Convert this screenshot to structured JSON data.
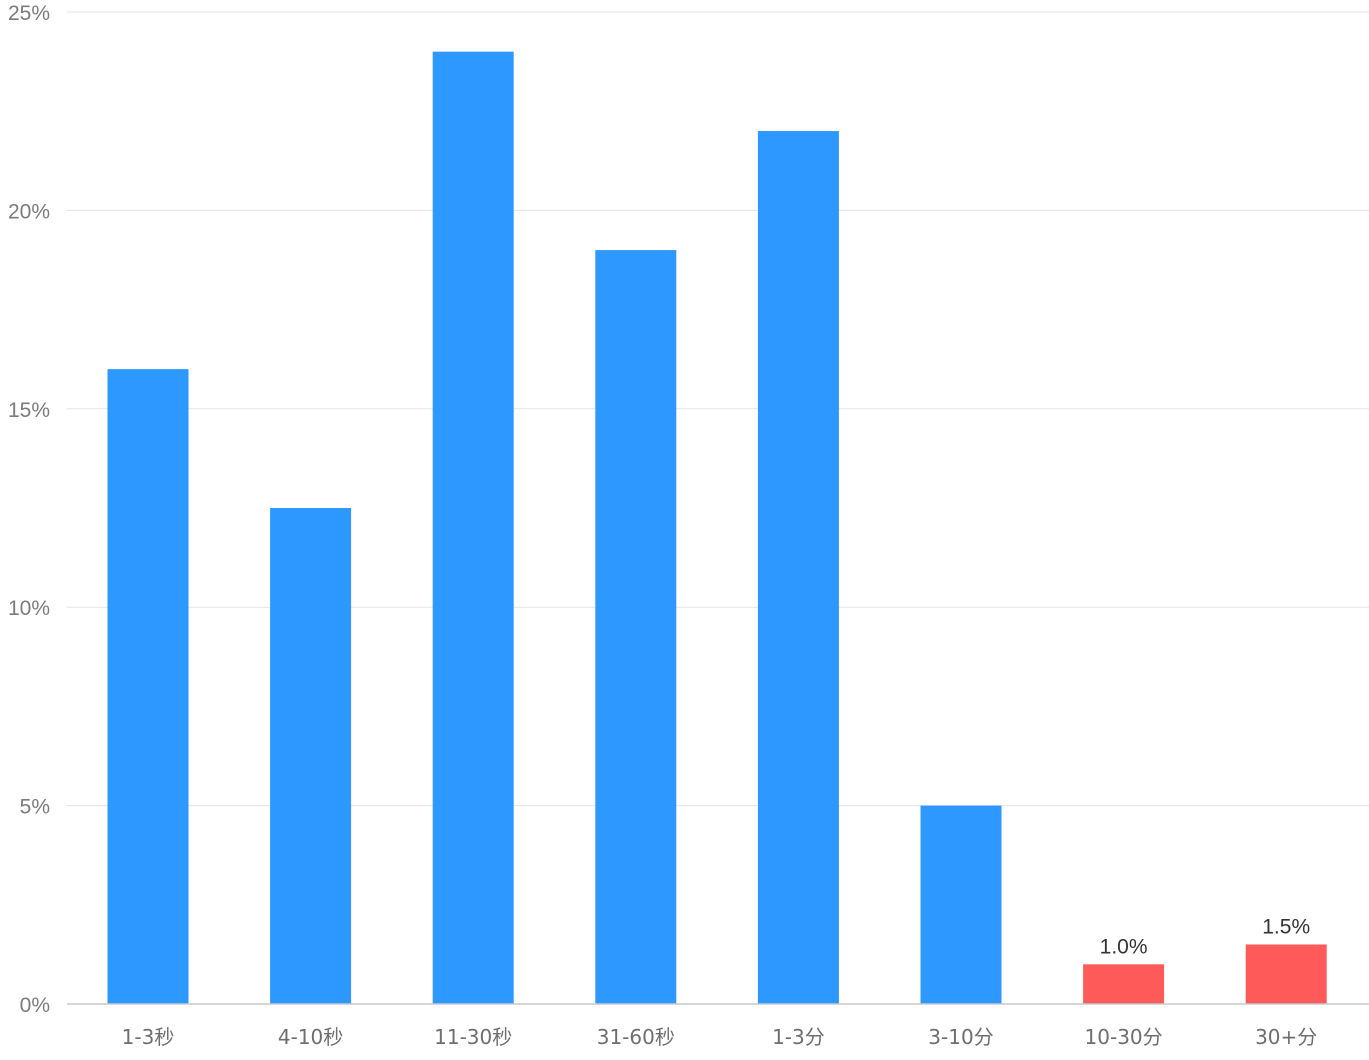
{
  "chart_data": {
    "type": "bar",
    "categories": [
      "1-3秒",
      "4-10秒",
      "11-30秒",
      "31-60秒",
      "1-3分",
      "3-10分",
      "10-30分",
      "30+分"
    ],
    "values": [
      16,
      12.5,
      24,
      19,
      22,
      5,
      1.0,
      1.5
    ],
    "unit": "%",
    "ylim": [
      0,
      25
    ],
    "yticks": [
      "0%",
      "5%",
      "10%",
      "15%",
      "20%",
      "25%"
    ],
    "ytick_values": [
      0,
      5,
      10,
      15,
      20,
      25
    ],
    "data_labels": [
      null,
      null,
      null,
      null,
      null,
      null,
      "1.0%",
      "1.5%"
    ],
    "colors": [
      "#2d98ff",
      "#2d98ff",
      "#2d98ff",
      "#2d98ff",
      "#2d98ff",
      "#2d98ff",
      "#ff5a5a",
      "#ff5a5a"
    ],
    "grid": true,
    "legend": "none",
    "title": "",
    "xlabel": "",
    "ylabel": ""
  }
}
